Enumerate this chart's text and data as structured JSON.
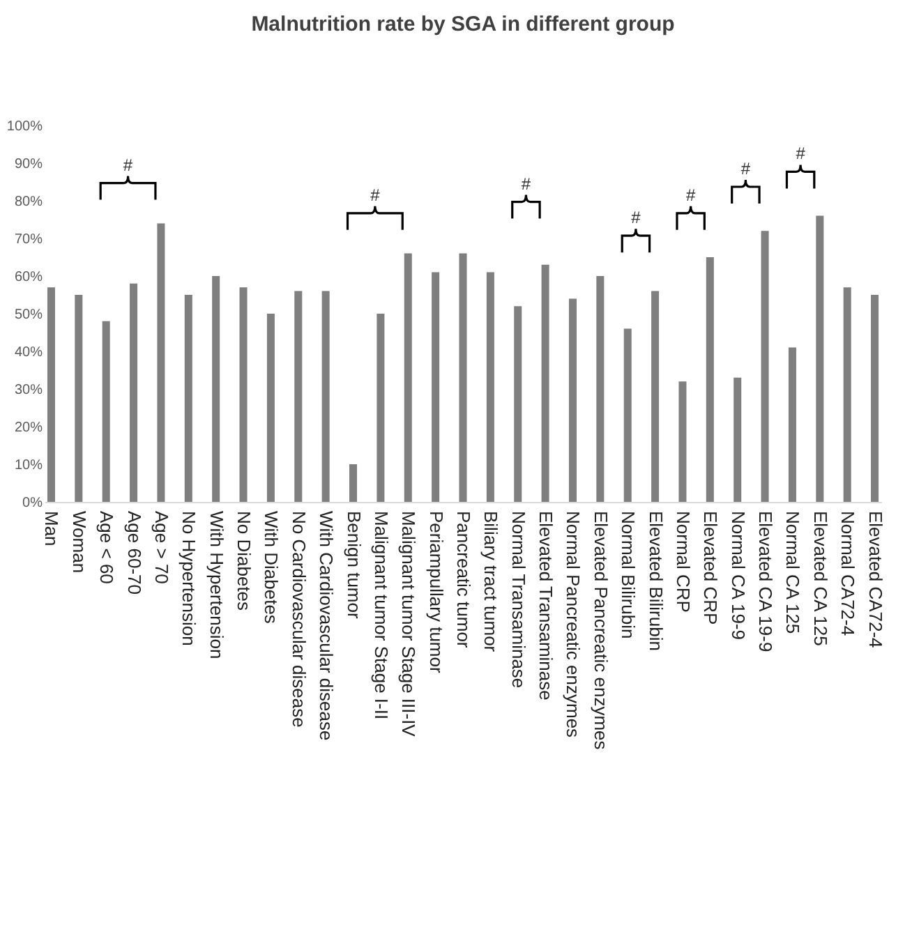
{
  "chart_data": {
    "type": "bar",
    "title": "Malnutrition rate by SGA in different group",
    "categories": [
      "Man",
      "Woman",
      "Age < 60",
      "Age 60-70",
      "Age > 70",
      "No Hypertension",
      "With Hypertension",
      "No Diabetes",
      "With Diabetes",
      "No Cardiovascular disease",
      "With Cardiovascular disease",
      "Benign tumor",
      "Malignant tumor Stage I-II",
      "Malignant tumor Stage III-IV",
      "Periampullary tumor",
      "Pancreatic tumor",
      "Biliary tract tumor",
      "Normal Transaminase",
      "Elevated Transaminase",
      "Normal Pancreatic enzymes",
      "Elevated Pancreatic enzymes",
      "Normal Bilirubin",
      "Elevated Bilirubin",
      "Normal CRP",
      "Elevated CRP",
      "Normal CA 19-9",
      "Elevated CA 19-9",
      "Normal CA 125",
      "Elevated CA 125",
      "Normal CA72-4",
      "Elevated CA72-4"
    ],
    "values": [
      57,
      55,
      48,
      58,
      74,
      55,
      60,
      57,
      50,
      56,
      56,
      10,
      50,
      66,
      61,
      66,
      61,
      52,
      63,
      54,
      60,
      46,
      56,
      32,
      65,
      33,
      72,
      41,
      76,
      57,
      55
    ],
    "color": "#7f7f7f",
    "ylim": [
      0,
      100
    ],
    "yticks": [
      {
        "value": 0,
        "label": "0%"
      },
      {
        "value": 10,
        "label": "10%"
      },
      {
        "value": 20,
        "label": "20%"
      },
      {
        "value": 30,
        "label": "30%"
      },
      {
        "value": 40,
        "label": "40%"
      },
      {
        "value": 50,
        "label": "50%"
      },
      {
        "value": 60,
        "label": "60%"
      },
      {
        "value": 70,
        "label": "70%"
      },
      {
        "value": 80,
        "label": "80%"
      },
      {
        "value": 90,
        "label": "90%"
      },
      {
        "value": 100,
        "label": "100%"
      }
    ],
    "annotations": [
      "#",
      "#",
      "#",
      "#",
      "#",
      "#",
      "#"
    ]
  }
}
